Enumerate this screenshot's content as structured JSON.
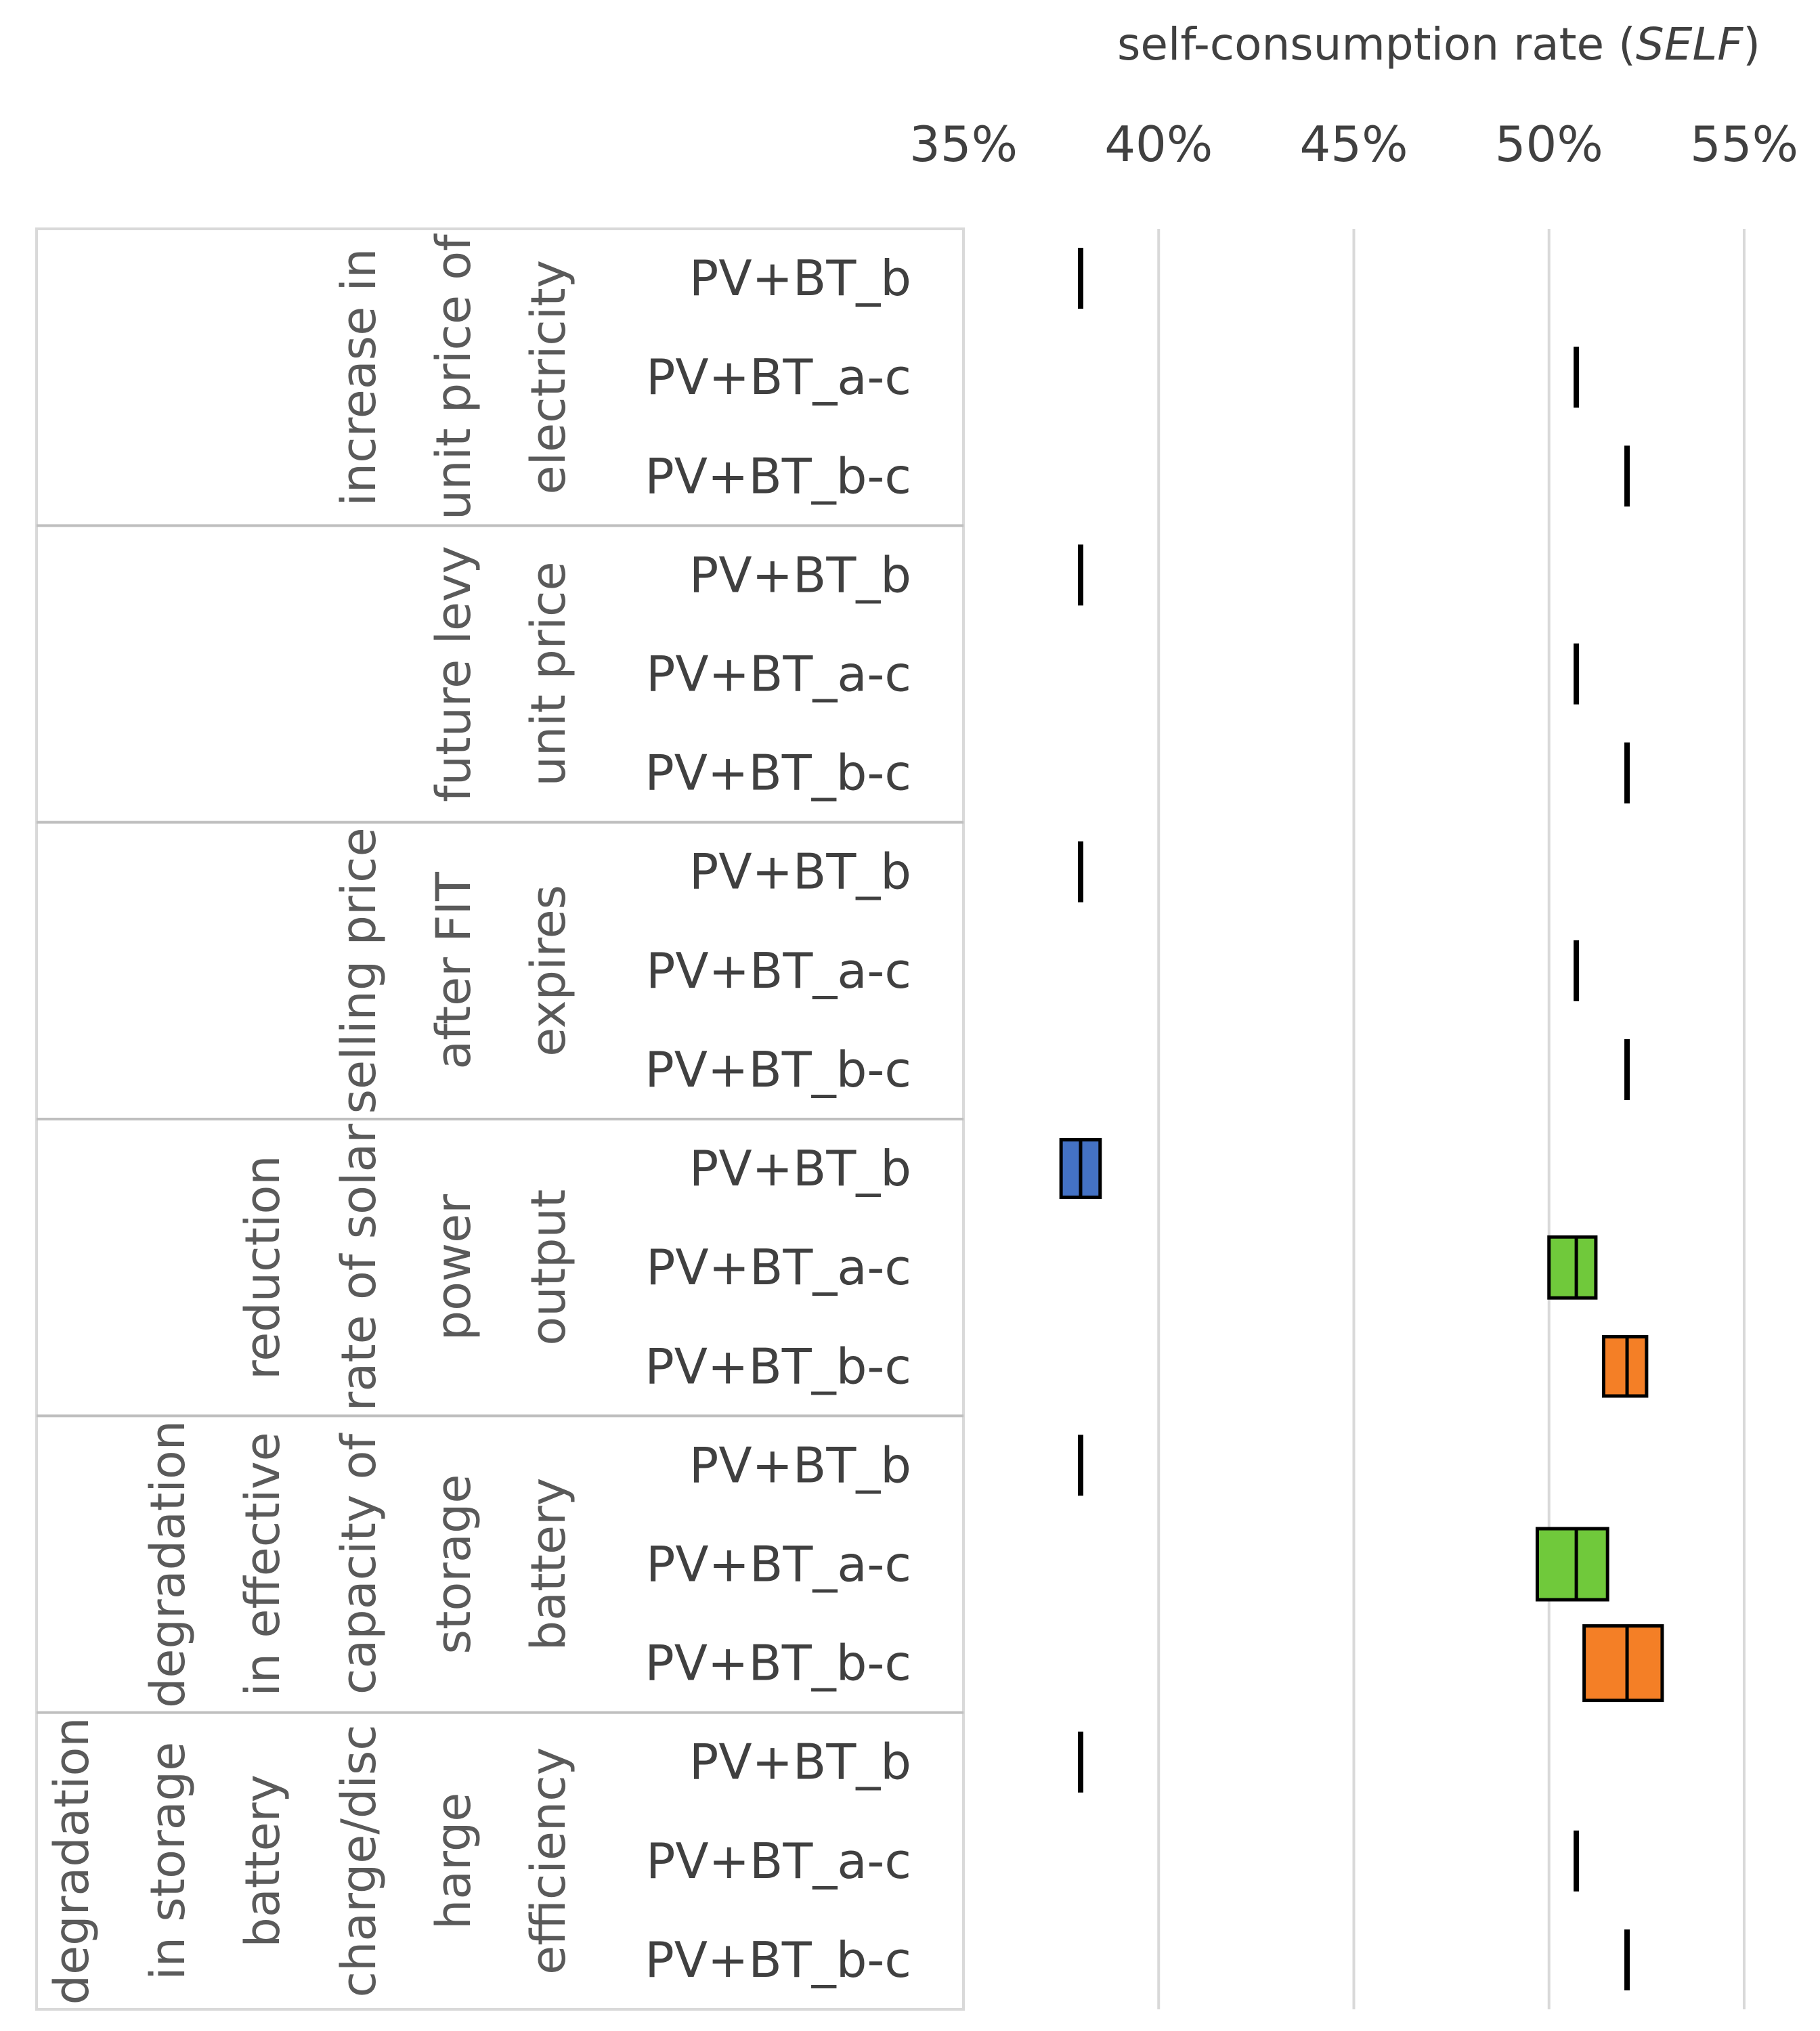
{
  "chart_data": {
    "type": "box",
    "title_main": "self-consumption rate (",
    "title_italic": "SELF",
    "title_close": ")",
    "xlim": [
      0.35,
      0.55
    ],
    "x_ticks": [
      0.35,
      0.4,
      0.45,
      0.5,
      0.55
    ],
    "x_tick_labels": [
      "35%",
      "40%",
      "45%",
      "50%",
      "55%"
    ],
    "series_colors": {
      "PV+BT_b": "#4472c4",
      "PV+BT_a-c": "#70c93b",
      "PV+BT_b-c": "#f47f26"
    },
    "groups": [
      {
        "label_lines": [
          "increase in",
          "unit price of",
          "electricity"
        ],
        "rows": [
          {
            "label": "PV+BT_b",
            "low": 0.38,
            "mid": 0.38,
            "high": 0.38
          },
          {
            "label": "PV+BT_a-c",
            "low": 0.507,
            "mid": 0.507,
            "high": 0.507
          },
          {
            "label": "PV+BT_b-c",
            "low": 0.52,
            "mid": 0.52,
            "high": 0.52
          }
        ]
      },
      {
        "label_lines": [
          "future levy",
          "unit price"
        ],
        "rows": [
          {
            "label": "PV+BT_b",
            "low": 0.38,
            "mid": 0.38,
            "high": 0.38
          },
          {
            "label": "PV+BT_a-c",
            "low": 0.507,
            "mid": 0.507,
            "high": 0.507
          },
          {
            "label": "PV+BT_b-c",
            "low": 0.52,
            "mid": 0.52,
            "high": 0.52
          }
        ]
      },
      {
        "label_lines": [
          "selling price",
          "after FIT",
          "expires"
        ],
        "rows": [
          {
            "label": "PV+BT_b",
            "low": 0.38,
            "mid": 0.38,
            "high": 0.38
          },
          {
            "label": "PV+BT_a-c",
            "low": 0.507,
            "mid": 0.507,
            "high": 0.507
          },
          {
            "label": "PV+BT_b-c",
            "low": 0.52,
            "mid": 0.52,
            "high": 0.52
          }
        ]
      },
      {
        "label_lines": [
          "reduction",
          "rate of solar",
          "power",
          "output"
        ],
        "rows": [
          {
            "label": "PV+BT_b",
            "low": 0.375,
            "mid": 0.38,
            "high": 0.385
          },
          {
            "label": "PV+BT_a-c",
            "low": 0.5,
            "mid": 0.507,
            "high": 0.512
          },
          {
            "label": "PV+BT_b-c",
            "low": 0.514,
            "mid": 0.52,
            "high": 0.525
          }
        ]
      },
      {
        "label_lines": [
          "degradation",
          "in effective",
          "capacity of",
          "storage",
          "battery"
        ],
        "rows": [
          {
            "label": "PV+BT_b",
            "low": 0.38,
            "mid": 0.38,
            "high": 0.38
          },
          {
            "label": "PV+BT_a-c",
            "low": 0.497,
            "mid": 0.507,
            "high": 0.515
          },
          {
            "label": "PV+BT_b-c",
            "low": 0.509,
            "mid": 0.52,
            "high": 0.529
          }
        ]
      },
      {
        "label_lines": [
          "degradation",
          "in storage",
          "battery",
          "charge/disc",
          "harge",
          "efficiency"
        ],
        "rows": [
          {
            "label": "PV+BT_b",
            "low": 0.38,
            "mid": 0.38,
            "high": 0.38
          },
          {
            "label": "PV+BT_a-c",
            "low": 0.507,
            "mid": 0.507,
            "high": 0.507
          },
          {
            "label": "PV+BT_b-c",
            "low": 0.52,
            "mid": 0.52,
            "high": 0.52
          }
        ]
      }
    ]
  }
}
